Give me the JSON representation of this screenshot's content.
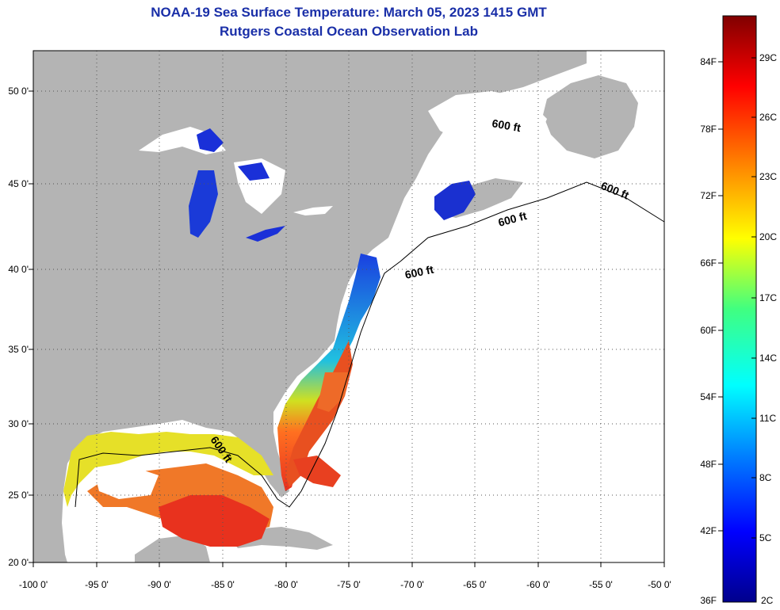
{
  "title_line1": "NOAA-19 Sea Surface Temperature:  March 05, 2023 1415 GMT",
  "title_line2": "Rutgers Coastal Ocean Observation Lab",
  "lat_labels": [
    "50 0'",
    "45 0'",
    "40 0'",
    "35 0'",
    "30 0'",
    "25 0'",
    "20 0'"
  ],
  "lon_labels": [
    "-100 0'",
    "-95 0'",
    "-90 0'",
    "-85 0'",
    "-80 0'",
    "-75 0'",
    "-70 0'",
    "-65 0'",
    "-60 0'",
    "-55 0'",
    "-50 0'"
  ],
  "contour_labels": [
    "600 ft",
    "600 ft",
    "600 ft",
    "600 ft",
    "600 ft"
  ],
  "colorbar": {
    "f_labels": [
      "84F",
      "78F",
      "72F",
      "66F",
      "60F",
      "54F",
      "48F",
      "42F",
      "36F"
    ],
    "c_labels": [
      "29C",
      "26C",
      "23C",
      "20C",
      "17C",
      "14C",
      "11C",
      "8C",
      "5C",
      "2C"
    ]
  },
  "colors": {
    "land": "#b4b4b4",
    "cloud": "#ffffff",
    "title": "#1a2fa8",
    "warm": "#e8321e",
    "cold": "#1a2ee0"
  }
}
